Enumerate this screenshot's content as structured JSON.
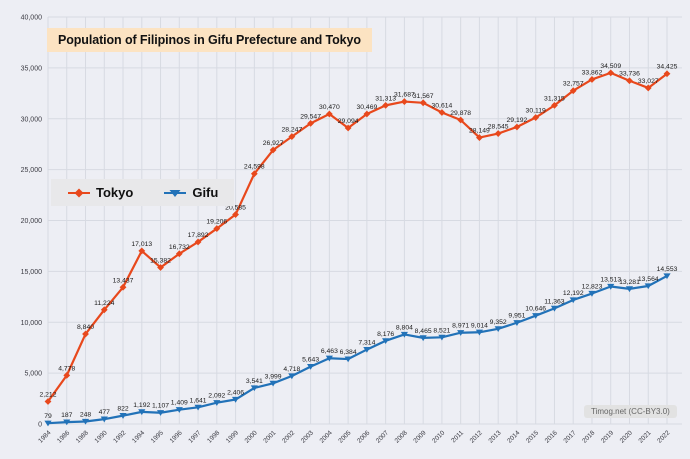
{
  "chart_data": {
    "type": "line",
    "title": "Population of Filipinos in Gifu Prefecture and Tokyo",
    "categories": [
      "1984",
      "1986",
      "1988",
      "1990",
      "1992",
      "1994",
      "1995",
      "1996",
      "1997",
      "1998",
      "1999",
      "2000",
      "2001",
      "2002",
      "2003",
      "2004",
      "2005",
      "2006",
      "2007",
      "2008",
      "2009",
      "2010",
      "2011",
      "2012",
      "2013",
      "2014",
      "2015",
      "2016",
      "2017",
      "2018",
      "2019",
      "2020",
      "2021",
      "2022"
    ],
    "series": [
      {
        "name": "Tokyo",
        "color": "#e8481c",
        "marker": "diamond",
        "values": [
          2212,
          4778,
          8840,
          11224,
          13437,
          17013,
          15382,
          16732,
          17892,
          19206,
          20585,
          24598,
          26927,
          28247,
          29547,
          30470,
          29094,
          30469,
          31313,
          31687,
          31567,
          30614,
          29878,
          28149,
          28545,
          29192,
          30119,
          31315,
          32757,
          33862,
          34509,
          33736,
          33027,
          34425
        ]
      },
      {
        "name": "Gifu",
        "color": "#2272b8",
        "marker": "triangle-down",
        "values": [
          79,
          187,
          248,
          477,
          822,
          1192,
          1107,
          1409,
          1641,
          2092,
          2406,
          3541,
          3999,
          4718,
          5643,
          6463,
          6384,
          7314,
          8176,
          8804,
          8465,
          8521,
          8971,
          9014,
          9352,
          9951,
          10646,
          11363,
          12192,
          12823,
          13513,
          13281,
          13564,
          14553
        ]
      }
    ],
    "xlabel": "",
    "ylabel": "",
    "ylim": [
      0,
      40000
    ],
    "ytick_step": 5000,
    "grid": true,
    "legend_position": "middle-left",
    "value_labels": true,
    "watermark": "Timog.net (CC-BY3.0)"
  },
  "appearance": {
    "background": "#edeef4",
    "grid_color": "#d7dae2",
    "axis_text_color": "#3b3b43",
    "label_text_color": "#1b1b1b",
    "title_bg": "#fce3c2",
    "title_color": "#111111",
    "legend_bg": "#e8e8ea",
    "legend_text_color": "#111111",
    "watermark_bg": "#e2e2e2",
    "watermark_color": "#666666"
  }
}
